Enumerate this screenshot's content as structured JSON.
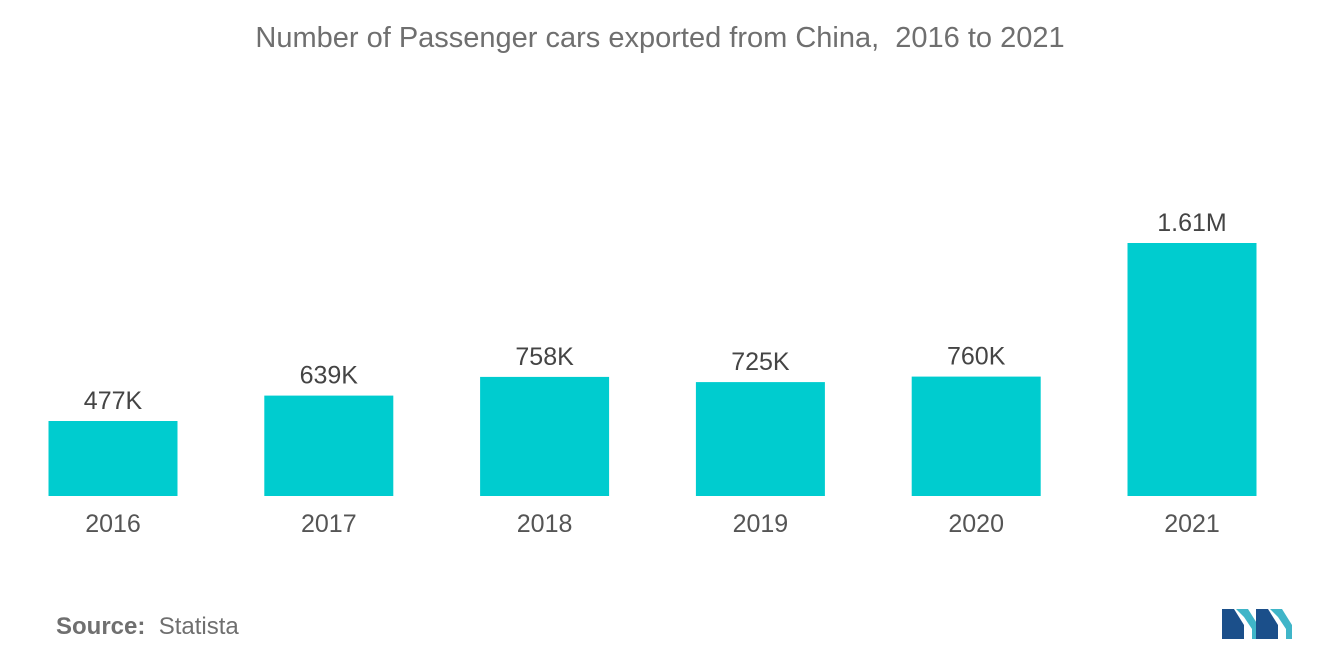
{
  "title": "Number of Passenger cars exported from China,  2016 to 2021",
  "source": {
    "label": "Source:",
    "value": "Statista"
  },
  "logo": {
    "icon": "mordor-intelligence-logo-icon",
    "colors": [
      "#1b4f8a",
      "#3fb5c8"
    ]
  },
  "bar_color": "#00cccf",
  "chart_data": {
    "type": "bar",
    "title": "Number of Passenger cars exported from China,  2016 to 2021",
    "xlabel": "",
    "ylabel": "",
    "categories": [
      "2016",
      "2017",
      "2018",
      "2019",
      "2020",
      "2021"
    ],
    "values": [
      477000,
      639000,
      758000,
      725000,
      760000,
      1610000
    ],
    "value_labels": [
      "477K",
      "639K",
      "758K",
      "725K",
      "760K",
      "1.61M"
    ],
    "ylim": [
      0,
      1610000
    ],
    "grid": false,
    "legend": "none"
  }
}
